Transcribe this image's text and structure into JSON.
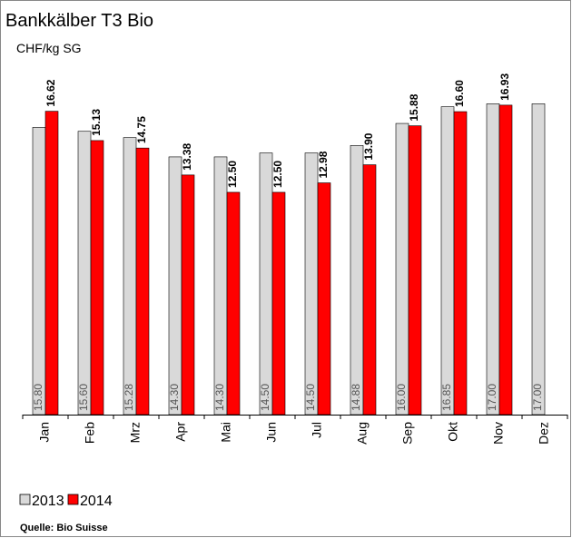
{
  "chart_data": {
    "type": "bar",
    "title": "Bankkälber T3 Bio",
    "subtitle": "CHF/kg SG",
    "source": "Quelle: Bio Suisse",
    "categories": [
      "Jan",
      "Feb",
      "Mrz",
      "Apr",
      "Mai",
      "Jun",
      "Jul",
      "Aug",
      "Sep",
      "Okt",
      "Nov",
      "Dez"
    ],
    "series": [
      {
        "name": "2013",
        "color": "#d9d9d9",
        "values": [
          15.8,
          15.6,
          15.28,
          14.3,
          14.3,
          14.5,
          14.5,
          14.88,
          16.0,
          16.85,
          17.0,
          17.0
        ],
        "value_labels": [
          "15.80",
          "15.60",
          "15.28",
          "14.30",
          "14.30",
          "14.50",
          "14.50",
          "14.88",
          "16.00",
          "16.85",
          "17.00",
          "17.00"
        ]
      },
      {
        "name": "2014",
        "color": "#ff0000",
        "values": [
          16.62,
          15.13,
          14.75,
          13.38,
          12.5,
          12.5,
          12.98,
          13.9,
          15.88,
          16.6,
          16.93,
          null
        ],
        "value_labels": [
          "16.62",
          "15.13",
          "14.75",
          "13.38",
          "12.50",
          "12.50",
          "12.98",
          "13.90",
          "15.88",
          "16.60",
          "16.93",
          null
        ]
      }
    ],
    "ylim": [
      1.2,
      19
    ]
  }
}
